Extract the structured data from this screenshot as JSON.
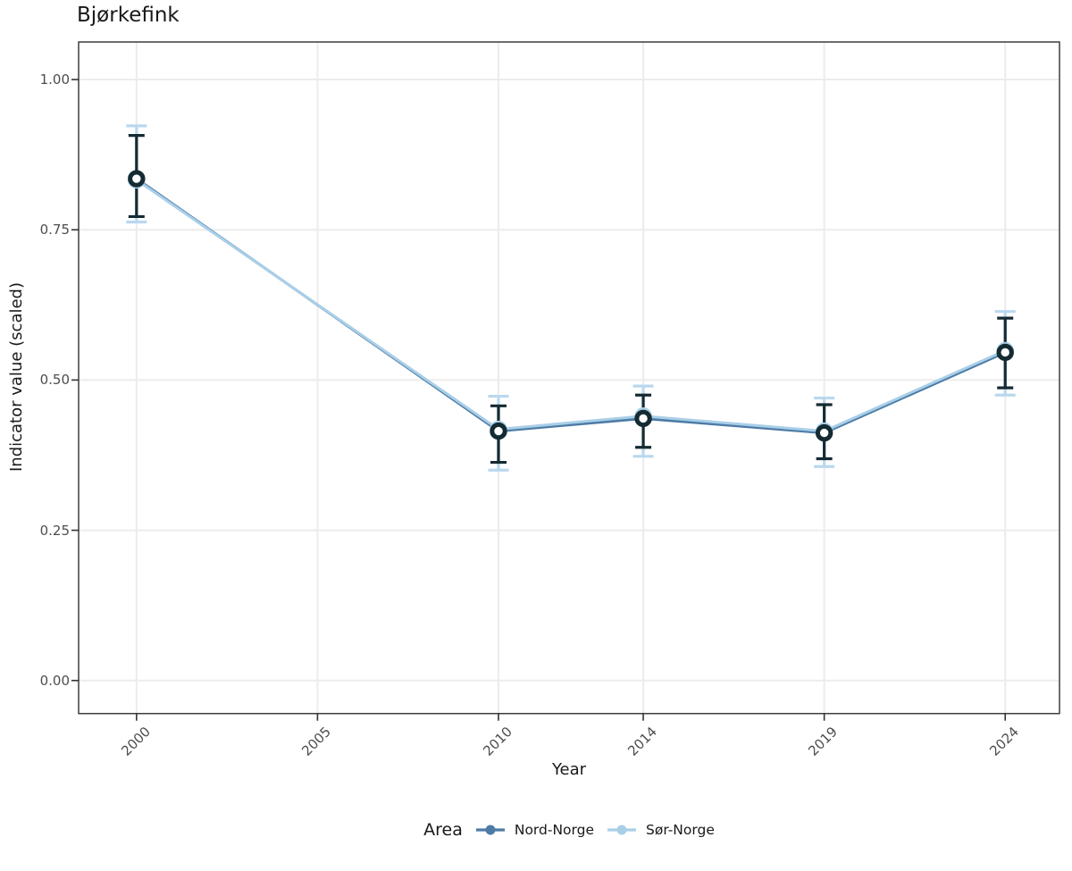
{
  "title": "Bjørkefink",
  "axes": {
    "x": {
      "label": "Year",
      "tick_labels": [
        "2000",
        "2005",
        "2010",
        "2014",
        "2019",
        "2024"
      ]
    },
    "y": {
      "label": "Indicator value (scaled)",
      "tick_labels": [
        "0.00",
        "0.25",
        "0.50",
        "0.75",
        "1.00"
      ]
    }
  },
  "legend": {
    "title": "Area",
    "items": [
      {
        "label": "Nord-Norge",
        "color": "#4d7ba6"
      },
      {
        "label": "Sør-Norge",
        "color": "#a9cfe8"
      }
    ]
  },
  "colors": {
    "background": "#ffffff",
    "panel_border": "#3d3d3d",
    "gridline": "#ececec",
    "tick_mark": "#333333",
    "tick_text": "#4d4d4d",
    "dark_point_stroke": "#142b33",
    "nord_line": "#4d7ba6",
    "sor_line": "#a9cfe8",
    "sor_errorbar": "#b9d8ee"
  },
  "chart_data": {
    "type": "line",
    "title": "Bjørkefink",
    "xlabel": "Year",
    "ylabel": "Indicator value (scaled)",
    "x": [
      2000,
      2010,
      2014,
      2019,
      2024
    ],
    "x_ticks": [
      2000,
      2005,
      2010,
      2014,
      2019,
      2024
    ],
    "y_ticks": [
      0,
      0.25,
      0.5,
      0.75,
      1
    ],
    "x_domain": [
      1998.4,
      2025.5
    ],
    "y_domain": [
      -0.055,
      1.0625
    ],
    "ylim": [
      0,
      1
    ],
    "grid": true,
    "legend_position": "bottom",
    "legend_title": "Area",
    "point_style": "open-circle-white-fill",
    "error_bars": true,
    "series": [
      {
        "name": "Nord-Norge",
        "line_color": "#4d7ba6",
        "errorbar_color": "#142b33",
        "point_stroke": "#142b33",
        "values": [
          0.835,
          0.415,
          0.436,
          0.412,
          0.546
        ],
        "ci_low": [
          0.772,
          0.363,
          0.388,
          0.369,
          0.487
        ],
        "ci_high": [
          0.907,
          0.457,
          0.475,
          0.459,
          0.603
        ]
      },
      {
        "name": "Sør-Norge",
        "line_color": "#a9cfe8",
        "errorbar_color": "#b9d8ee",
        "point_stroke": "#a9cfe8",
        "values": [
          0.833,
          0.418,
          0.44,
          0.415,
          0.549
        ],
        "ci_low": [
          0.763,
          0.35,
          0.373,
          0.356,
          0.475
        ],
        "ci_high": [
          0.923,
          0.473,
          0.49,
          0.47,
          0.614
        ]
      }
    ]
  }
}
